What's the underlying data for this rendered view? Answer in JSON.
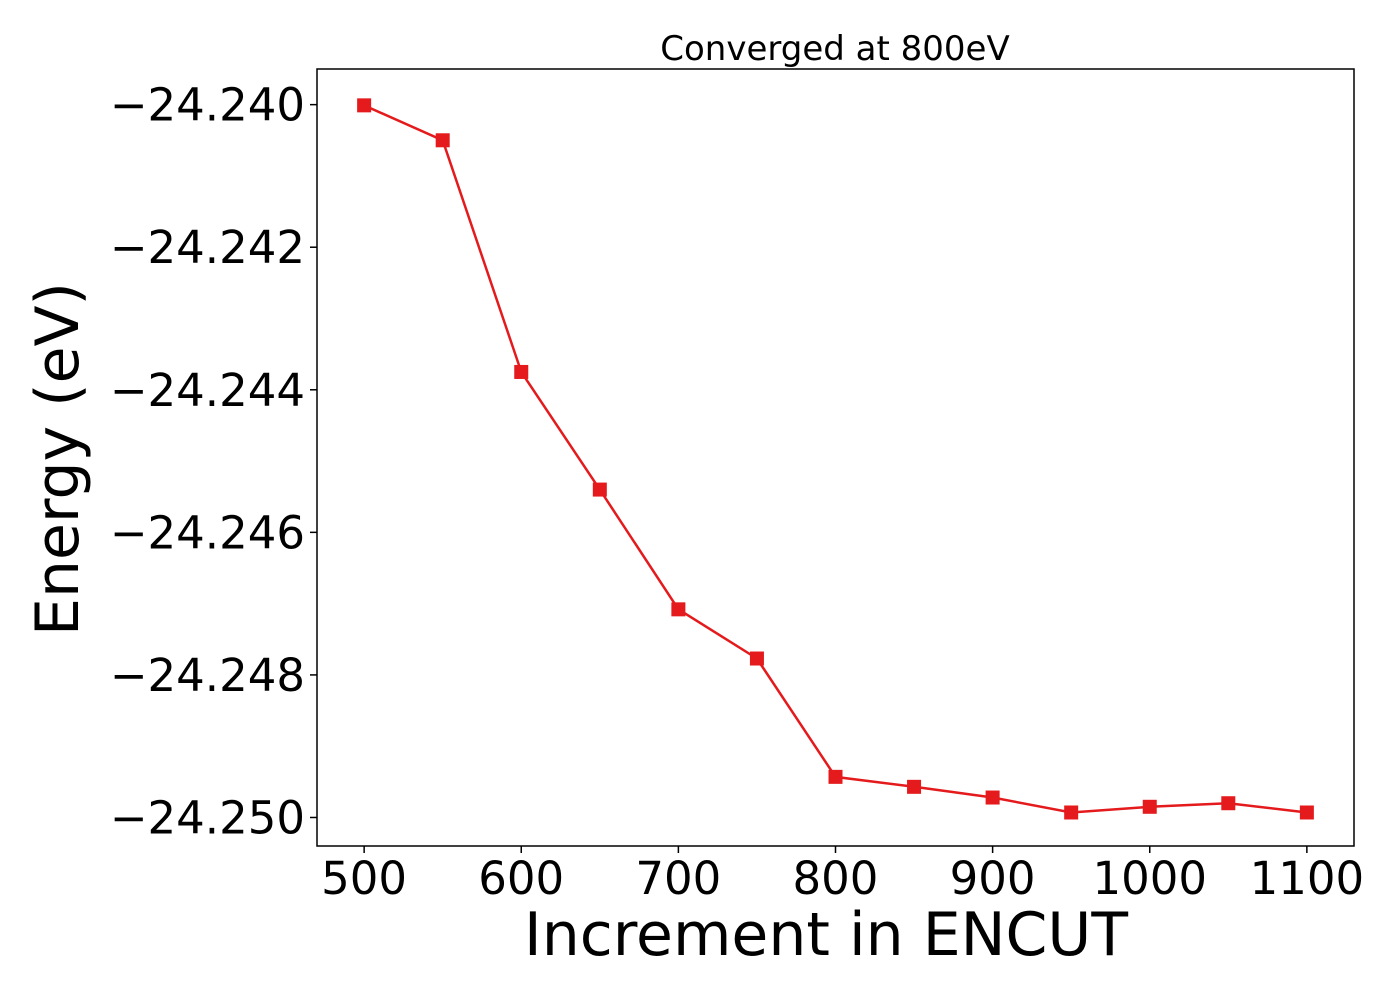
{
  "chart_data": {
    "type": "line",
    "title": "Converged at 800eV",
    "xlabel": "Increment in ENCUT",
    "ylabel": "Energy (eV)",
    "xlim": [
      470,
      1130
    ],
    "ylim": [
      -24.2504,
      -24.2395
    ],
    "xticks": [
      500,
      600,
      700,
      800,
      900,
      1000,
      1100
    ],
    "xtick_labels": [
      "500",
      "600",
      "700",
      "800",
      "900",
      "1000",
      "1100"
    ],
    "yticks": [
      -24.24,
      -24.242,
      -24.244,
      -24.246,
      -24.248,
      -24.25
    ],
    "ytick_labels": [
      "−24.240",
      "−24.242",
      "−24.244",
      "−24.246",
      "−24.248",
      "−24.250"
    ],
    "grid": false,
    "legend": "none",
    "series": [
      {
        "color": "#e41a1c",
        "marker": "square",
        "x": [
          500,
          550,
          600,
          650,
          700,
          750,
          800,
          850,
          900,
          950,
          1000,
          1050,
          1100
        ],
        "y": [
          -24.24001,
          -24.2405,
          -24.24375,
          -24.2454,
          -24.24708,
          -24.24777,
          -24.24943,
          -24.24957,
          -24.24972,
          -24.24993,
          -24.24985,
          -24.2498,
          -24.24993
        ]
      }
    ]
  }
}
